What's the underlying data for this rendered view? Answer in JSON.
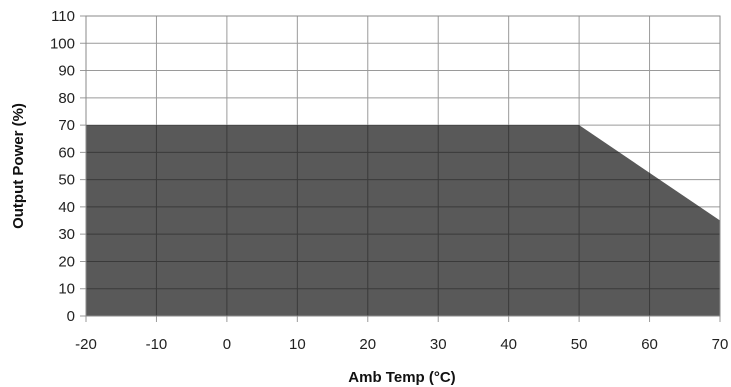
{
  "chart_data": {
    "type": "area",
    "title": "",
    "xlabel": "Amb Temp (°C)",
    "ylabel": "Output Power (%)",
    "xlim": [
      -20,
      70
    ],
    "ylim": [
      0,
      110
    ],
    "x_ticks": [
      -20,
      -10,
      0,
      10,
      20,
      30,
      40,
      50,
      60,
      70
    ],
    "y_ticks": [
      0,
      10,
      20,
      30,
      40,
      50,
      60,
      70,
      80,
      90,
      100,
      110
    ],
    "grid": true,
    "legend": "none",
    "series": [
      {
        "x": [
          -20,
          50,
          70
        ],
        "y": [
          70,
          70,
          35
        ],
        "color": "#595959"
      }
    ]
  }
}
